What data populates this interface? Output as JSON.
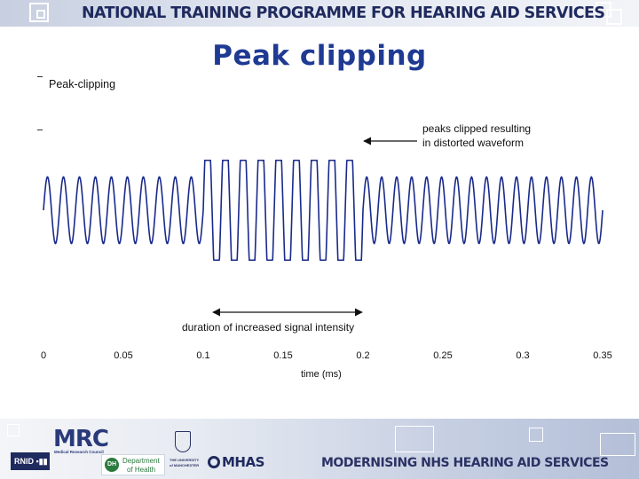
{
  "header": {
    "title": "NATIONAL TRAINING PROGRAMME FOR  HEARING AID SERVICES"
  },
  "slide": {
    "title": "Peak clipping"
  },
  "chart_data": {
    "type": "line",
    "title": "Peak-clipping",
    "xlabel": "time (ms)",
    "ylabel": "",
    "xlim": [
      0,
      0.35
    ],
    "x_ticks": [
      "0",
      "0.05",
      "0.1",
      "0.15",
      "0.2",
      "0.25",
      "0.3",
      "0.35"
    ],
    "grid": false,
    "series": [
      {
        "color": "#1a2a8a",
        "segments": [
          {
            "x_start": 0.0,
            "x_end": 0.1,
            "amplitude": 0.5,
            "clipped": false,
            "cycles": 10
          },
          {
            "x_start": 0.1,
            "x_end": 0.2,
            "amplitude": 1.0,
            "clipped": true,
            "cycles": 9
          },
          {
            "x_start": 0.2,
            "x_end": 0.35,
            "amplitude": 0.5,
            "clipped": false,
            "cycles": 16
          }
        ]
      }
    ],
    "annotations": [
      {
        "text_lines": [
          "peaks clipped resulting",
          "in distorted waveform"
        ],
        "arrow": "left"
      },
      {
        "text": "duration of increased signal intensity",
        "x_start": 0.1,
        "x_end": 0.2
      }
    ]
  },
  "footer": {
    "title": "MODERNISING NHS HEARING AID SERVICES",
    "logos": {
      "rnid": "RNID",
      "mrc": "MRC",
      "mrc_sub": "Medical Research Council",
      "dh_mark": "DH",
      "dh_line1": "Department",
      "dh_line2": "of Health",
      "uni_line1": "THE UNIVERSITY",
      "uni_line2": "of MANCHESTER",
      "mhas": "MHAS"
    },
    "colors": {
      "mrc": "#2a3a7a",
      "mhas": "#1f2a5e",
      "dh": "#2b7a3e"
    }
  }
}
